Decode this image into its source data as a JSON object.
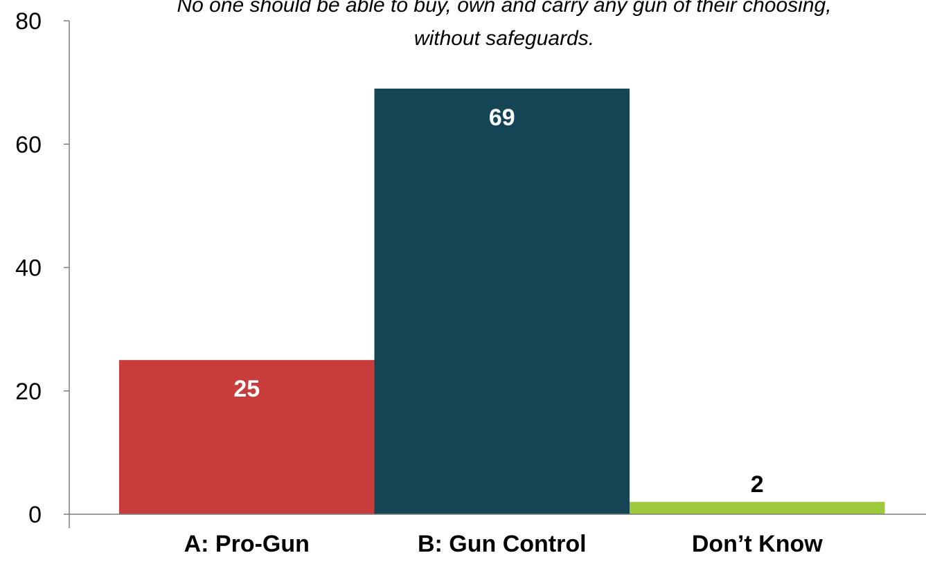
{
  "chart_data": {
    "type": "bar",
    "title_lines": [
      "No one should be able to buy, own and carry any gun of their choosing,",
      "without safeguards."
    ],
    "categories": [
      "A: Pro-Gun",
      "B: Gun Control",
      "Don’t Know"
    ],
    "values": [
      25,
      69,
      2
    ],
    "data_labels": [
      "25",
      "69",
      "2"
    ],
    "colors": [
      "#c93c3c",
      "#154454",
      "#9dc93c"
    ],
    "label_colors": [
      "#ffffff",
      "#ffffff",
      "#000000"
    ],
    "ylim": [
      0,
      80
    ],
    "yticks": [
      0,
      20,
      40,
      60,
      80
    ],
    "ytick_labels": [
      "0",
      "20",
      "40",
      "60",
      "80"
    ],
    "grid": false,
    "legend": "none"
  }
}
